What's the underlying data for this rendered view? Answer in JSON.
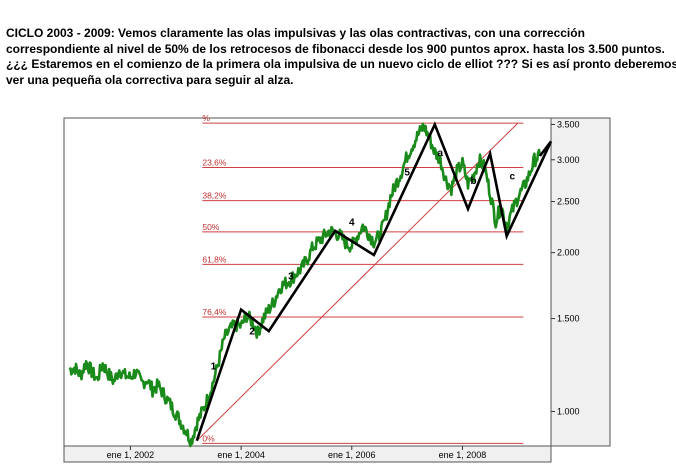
{
  "intro": {
    "lines": [
      "CICLO 2003 - 2009: Vemos claramente las olas impulsivas y las olas contractivas, con una corrección",
      "correspondiente al nivel de 50% de los retrocesos de fibonacci desde los 900 puntos aprox. hasta los 3.500 puntos.",
      "¿¿¿ Estaremos en el comienzo de la primera ola impulsiva de un nuevo ciclo de elliot ??? Si es así pronto deberemos",
      "ver una pequeña ola correctiva para seguir al alza."
    ]
  },
  "colors": {
    "price": "#1a8a1a",
    "waves": "#000000",
    "fib": "#d04040",
    "axis_bg": "#f0f0f0"
  },
  "chart_data": {
    "type": "line",
    "scale": "log",
    "ylim": [
      860,
      3600
    ],
    "xlim": [
      2000.8,
      2009.6
    ],
    "y_ticks": [
      {
        "value": 1000,
        "label": "1.000"
      },
      {
        "value": 1500,
        "label": "1.500"
      },
      {
        "value": 2000,
        "label": "2.000"
      },
      {
        "value": 2500,
        "label": "2.500"
      },
      {
        "value": 3000,
        "label": "3.000"
      },
      {
        "value": 3500,
        "label": "3.500"
      }
    ],
    "x_ticks": [
      {
        "value": 2002.0,
        "label": "ene 1, 2002"
      },
      {
        "value": 2004.0,
        "label": "ene 1, 2004"
      },
      {
        "value": 2006.0,
        "label": "ene 1, 2006"
      },
      {
        "value": 2008.0,
        "label": "ene 1, 2008"
      }
    ],
    "fib_levels": [
      {
        "label": "0%",
        "value": 870
      },
      {
        "label": "76,4%",
        "value": 1510
      },
      {
        "label": "61,8%",
        "value": 1900
      },
      {
        "label": "50%",
        "value": 2190
      },
      {
        "label": "38,2%",
        "value": 2510
      },
      {
        "label": "23,6%",
        "value": 2900
      },
      {
        "label": "%",
        "value": 3520
      }
    ],
    "trend_line": {
      "x": [
        2003.2,
        2009.0
      ],
      "y": [
        880,
        3520
      ]
    },
    "series": [
      {
        "x": [
          2000.9,
          2001.0,
          2001.1,
          2001.2,
          2001.3,
          2001.4,
          2001.5,
          2001.6,
          2001.7,
          2001.8,
          2001.9,
          2002.0,
          2002.1,
          2002.2,
          2002.3,
          2002.4,
          2002.5,
          2002.6,
          2002.7,
          2002.8,
          2002.9,
          2003.0,
          2003.1,
          2003.2,
          2003.3,
          2003.4,
          2003.5,
          2003.6,
          2003.7,
          2003.8,
          2003.9,
          2004.0,
          2004.1,
          2004.2,
          2004.3,
          2004.4,
          2004.5,
          2004.6,
          2004.7,
          2004.8,
          2004.9,
          2005.0,
          2005.1,
          2005.2,
          2005.3,
          2005.4,
          2005.5,
          2005.6,
          2005.7,
          2005.8,
          2005.9,
          2006.0,
          2006.1,
          2006.2,
          2006.3,
          2006.4,
          2006.5,
          2006.6,
          2006.7,
          2006.8,
          2006.9,
          2007.0,
          2007.1,
          2007.2,
          2007.3,
          2007.4,
          2007.5,
          2007.6,
          2007.7,
          2007.8,
          2007.9,
          2008.0,
          2008.1,
          2008.2,
          2008.3,
          2008.4,
          2008.5,
          2008.6,
          2008.7,
          2008.8,
          2008.9,
          2009.0,
          2009.1,
          2009.2,
          2009.3,
          2009.4
        ],
        "y": [
          1200,
          1210,
          1170,
          1240,
          1190,
          1150,
          1230,
          1180,
          1140,
          1200,
          1170,
          1160,
          1190,
          1130,
          1150,
          1100,
          1120,
          1080,
          1040,
          1000,
          960,
          920,
          880,
          950,
          1000,
          1060,
          1140,
          1250,
          1380,
          1430,
          1460,
          1450,
          1520,
          1480,
          1410,
          1500,
          1560,
          1620,
          1720,
          1750,
          1780,
          1830,
          1870,
          1950,
          2050,
          2100,
          2150,
          2200,
          2180,
          2150,
          2080,
          2060,
          2150,
          2250,
          2180,
          2100,
          2150,
          2300,
          2550,
          2700,
          2850,
          3050,
          3200,
          3350,
          3480,
          3300,
          3100,
          3000,
          2750,
          2650,
          2850,
          2950,
          2700,
          2800,
          3000,
          2900,
          2600,
          2300,
          2450,
          2250,
          2400,
          2550,
          2650,
          2800,
          3000,
          3050
        ]
      },
      {
        "x": [
          2003.2,
          2004.0,
          2004.5,
          2005.7,
          2006.4,
          2007.5,
          2008.1,
          2008.5,
          2008.8,
          2009.6,
          2009.4
        ],
        "y": [
          880,
          1560,
          1420,
          2200,
          1980,
          3500,
          2420,
          3080,
          2150,
          3250,
          3050
        ]
      }
    ],
    "wave_labels": [
      {
        "text": "1",
        "x": 2003.5,
        "y": 1200
      },
      {
        "text": "2",
        "x": 2004.2,
        "y": 1400
      },
      {
        "text": "3",
        "x": 2004.9,
        "y": 1780
      },
      {
        "text": "4",
        "x": 2006.0,
        "y": 2250
      },
      {
        "text": "5",
        "x": 2007.0,
        "y": 2800
      },
      {
        "text": "a",
        "x": 2007.6,
        "y": 3050
      },
      {
        "text": "b",
        "x": 2008.2,
        "y": 2700
      },
      {
        "text": "c",
        "x": 2008.9,
        "y": 2750
      }
    ]
  }
}
